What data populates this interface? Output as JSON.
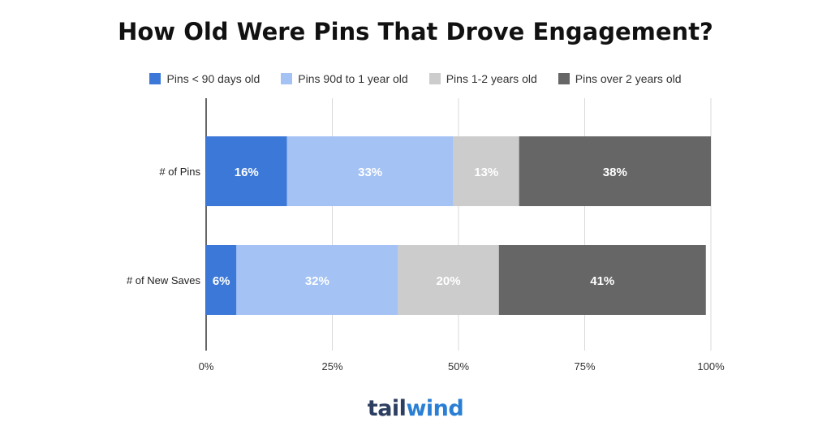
{
  "chart_data": {
    "type": "bar",
    "orientation": "horizontal",
    "stacked": true,
    "title": "How Old Were Pins That Drove Engagement?",
    "categories": [
      "# of Pins",
      "# of New Saves"
    ],
    "series": [
      {
        "name": "Pins < 90 days old",
        "color": "#3b78d8",
        "values": [
          16,
          6
        ],
        "labels": [
          "16%",
          "6%"
        ]
      },
      {
        "name": "Pins 90d to 1 year old",
        "color": "#a4c2f4",
        "values": [
          33,
          32
        ],
        "labels": [
          "33%",
          "32%"
        ]
      },
      {
        "name": "Pins 1-2 years old",
        "color": "#cccccc",
        "values": [
          13,
          20
        ],
        "labels": [
          "13%",
          "20%"
        ]
      },
      {
        "name": "Pins over 2 years old",
        "color": "#666666",
        "values": [
          38,
          41
        ],
        "labels": [
          "38%",
          "41%"
        ]
      }
    ],
    "xticks": [
      "0%",
      "25%",
      "50%",
      "75%",
      "100%"
    ],
    "xlim": [
      0,
      100
    ],
    "grid": true,
    "legend_position": "top"
  },
  "logo": {
    "part1": "tail",
    "part2": "wind"
  }
}
